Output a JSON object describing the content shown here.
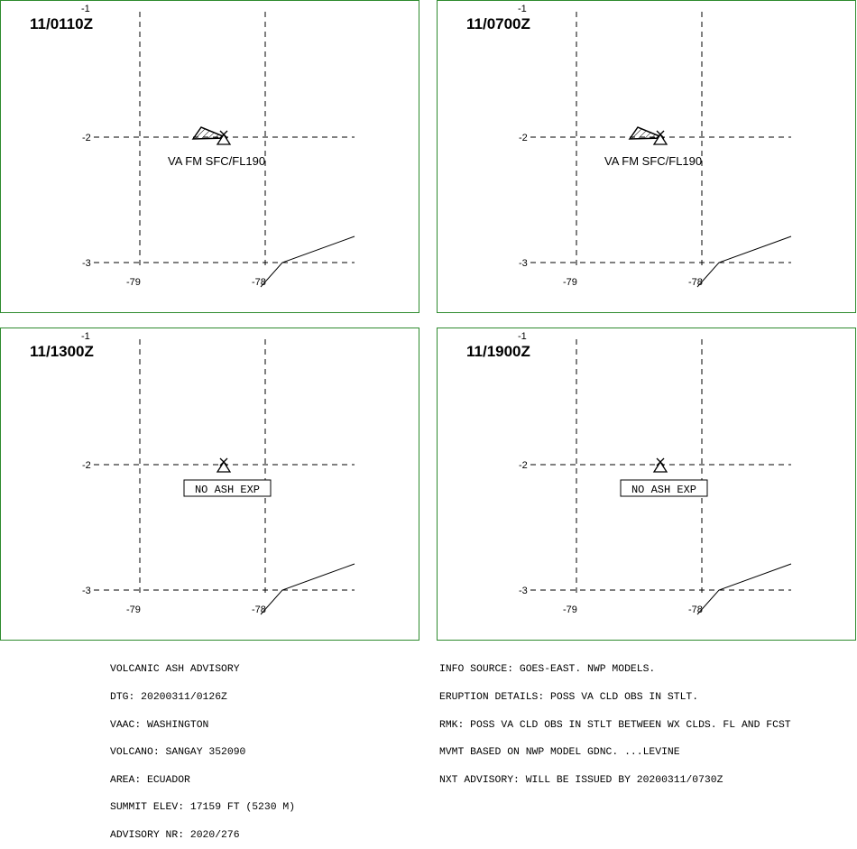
{
  "panels": [
    {
      "time": "11/0110Z",
      "label": "VA FM SFC/FL190",
      "has_ash": true
    },
    {
      "time": "11/0700Z",
      "label": "VA FM SFC/FL190",
      "has_ash": true
    },
    {
      "time": "11/1300Z",
      "label": "NO ASH EXP",
      "has_ash": false
    },
    {
      "time": "11/1900Z",
      "label": "NO ASH EXP",
      "has_ash": false
    }
  ],
  "grid_labels": {
    "lat_top": "-1",
    "lat_mid": "-2",
    "lat_bottom": "-3",
    "lon_left": "-79",
    "lon_right": "-78"
  },
  "advisory_left": [
    "VOLCANIC ASH ADVISORY",
    "DTG: 20200311/0126Z",
    "VAAC: WASHINGTON",
    "VOLCANO: SANGAY 352090",
    "AREA: ECUADOR",
    "SUMMIT ELEV: 17159 FT (5230 M)",
    "ADVISORY NR: 2020/276"
  ],
  "advisory_right": [
    "INFO SOURCE: GOES-EAST. NWP MODELS.",
    "ERUPTION DETAILS: POSS VA CLD OBS IN STLT.",
    "RMK: POSS VA CLD OBS IN STLT BETWEEN WX CLDS. FL AND FCST",
    "MVMT BASED ON NWP MODEL GDNC. ...LEVINE",
    "NXT ADVISORY: WILL BE ISSUED BY 20200311/0730Z"
  ],
  "colors": {
    "panel_border": "#2e8b2e"
  }
}
